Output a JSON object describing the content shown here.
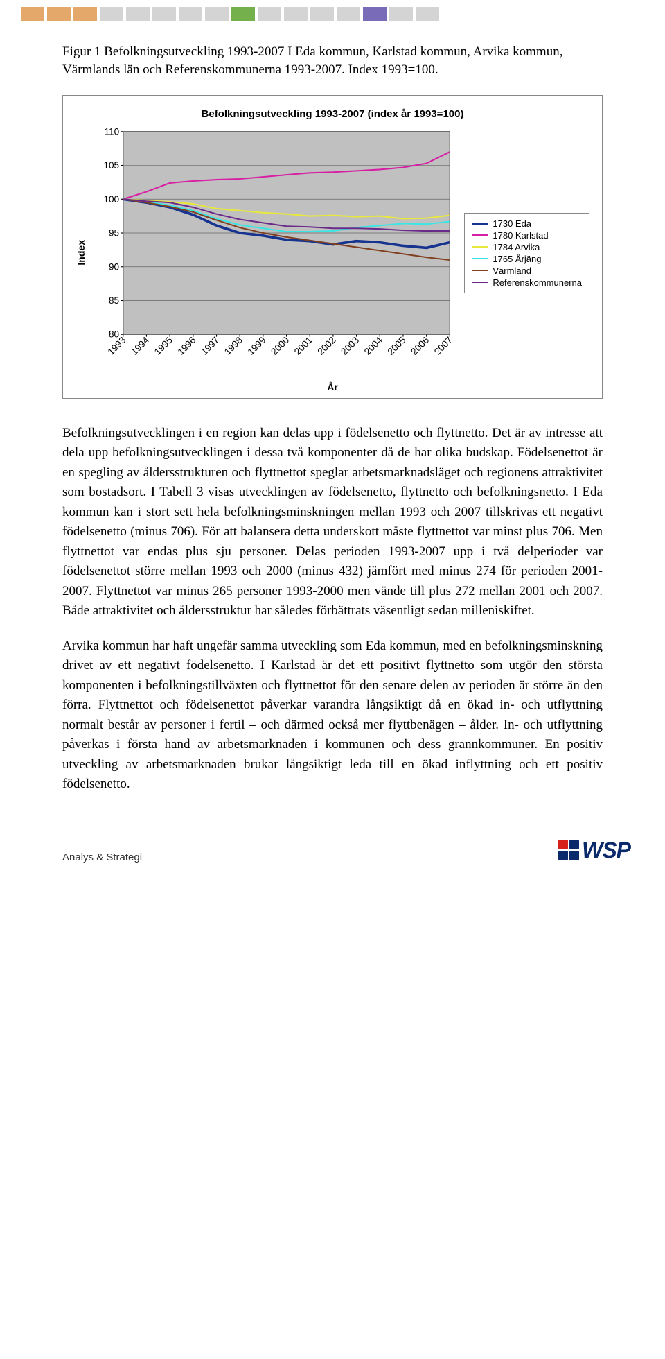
{
  "stripe_colors": [
    "#e4a86a",
    "#e4a86a",
    "#e4a86a",
    "#d4d4d4",
    "#d4d4d4",
    "#d4d4d4",
    "#d4d4d4",
    "#d4d4d4",
    "#74b04c",
    "#d4d4d4",
    "#d4d4d4",
    "#d4d4d4",
    "#d4d4d4",
    "#7a6bb8",
    "#d4d4d4",
    "#d4d4d4"
  ],
  "figure_caption": "Figur 1 Befolkningsutveckling 1993-2007 I Eda kommun, Karlstad kommun, Arvika kommun, Värmlands län och Referenskommunerna 1993-2007. Index 1993=100.",
  "chart": {
    "title": "Befolkningsutveckling 1993-2007 (index år 1993=100)",
    "ylabel": "Index",
    "xlabel": "År",
    "ylim": [
      80,
      110
    ],
    "ytick_step": 5,
    "yticks": [
      80,
      85,
      90,
      95,
      100,
      105,
      110
    ],
    "years": [
      1993,
      1994,
      1995,
      1996,
      1997,
      1998,
      1999,
      2000,
      2001,
      2002,
      2003,
      2004,
      2005,
      2006,
      2007
    ],
    "grid_color": "#bfbfbf",
    "border_color": "#888888",
    "background": "#ffffff",
    "plot_background": "#c0c0c0",
    "axis_font_size": 12,
    "tick_font_size": 12,
    "series": [
      {
        "name": "1730 Eda",
        "color": "#16338f",
        "width": 3.2,
        "values": [
          100,
          99.5,
          98.8,
          97.7,
          96.1,
          95.0,
          94.6,
          94.0,
          93.8,
          93.3,
          93.8,
          93.6,
          93.1,
          92.8,
          93.6
        ]
      },
      {
        "name": "1780 Karlstad",
        "color": "#d61fa3",
        "width": 1.8,
        "values": [
          100,
          101.1,
          102.4,
          102.7,
          102.9,
          103.0,
          103.3,
          103.6,
          103.9,
          104.0,
          104.2,
          104.4,
          104.7,
          105.3,
          107.0
        ]
      },
      {
        "name": "1784 Arvika",
        "color": "#e8e83c",
        "width": 1.8,
        "values": [
          100,
          99.8,
          99.6,
          99.3,
          98.6,
          98.3,
          98.0,
          97.8,
          97.5,
          97.6,
          97.4,
          97.5,
          97.1,
          97.2,
          97.6
        ]
      },
      {
        "name": "1765 Årjäng",
        "color": "#39e6e6",
        "width": 1.8,
        "values": [
          100,
          99.6,
          99.1,
          98.3,
          97.1,
          96.2,
          95.7,
          95.2,
          95.2,
          95.3,
          95.8,
          96.1,
          96.4,
          96.3,
          96.7
        ]
      },
      {
        "name": "Värmland",
        "color": "#804020",
        "width": 1.8,
        "values": [
          100,
          99.5,
          98.9,
          98.1,
          96.9,
          95.8,
          95.0,
          94.4,
          93.9,
          93.4,
          92.9,
          92.4,
          91.9,
          91.4,
          91.0
        ]
      },
      {
        "name": "Referenskommunerna",
        "color": "#6a2a8a",
        "width": 1.8,
        "values": [
          100,
          99.7,
          99.5,
          98.8,
          97.8,
          97.0,
          96.5,
          96.0,
          95.9,
          95.7,
          95.7,
          95.6,
          95.4,
          95.3,
          95.3
        ]
      }
    ]
  },
  "paragraph1": "Befolkningsutvecklingen i en region kan delas upp i födelsenetto och flyttnetto. Det är av intresse att dela upp befolkningsutvecklingen i dessa två komponenter då de har olika budskap. Födelsenettot är en spegling av åldersstrukturen och flyttnettot speglar arbetsmarknadsläget och regionens attraktivitet som bostadsort. I Tabell 3 visas utvecklingen av födelsenetto, flyttnetto och befolkningsnetto. I Eda kommun kan i stort sett hela befolkningsminskningen mellan 1993 och 2007 tillskrivas ett negativt födelsenetto (minus 706). För att balansera detta underskott måste flyttnettot var minst plus 706. Men flyttnettot var endas plus sju personer. Delas perioden 1993-2007 upp i två delperioder var födelsenettot större mellan 1993 och 2000 (minus 432) jämfört med minus 274 för perioden 2001-2007. Flyttnettot var minus 265 personer 1993-2000 men vände till plus 272 mellan 2001 och 2007. Både attraktivitet och åldersstruktur har således förbättrats väsentligt sedan milleniskiftet.",
  "paragraph2": "Arvika kommun har haft ungefär samma utveckling som Eda kommun, med en befolkningsminskning drivet av ett negativt födelsenetto. I Karlstad är det ett positivt flyttnetto som utgör den största komponenten i befolkningstillväxten och flyttnettot för den senare delen av perioden är större än den förra. Flyttnettot och födelsenettot påverkar varandra långsiktigt då en ökad in- och utflyttning normalt består av personer i fertil – och därmed också mer flyttbenägen – ålder. In- och utflyttning påverkas i första hand av arbetsmarknaden i kommunen och dess grannkommuner. En positiv utveckling av arbetsmarknaden brukar långsiktigt leda till en ökad inflyttning och ett positiv födelsenetto.",
  "footer_left": "Analys & Strategi",
  "logo": {
    "text": "WSP",
    "colors": [
      "#d8201a",
      "#0a2a6b",
      "#0a2a6b",
      "#0a2a6b"
    ],
    "text_color": "#0a2a6b"
  }
}
